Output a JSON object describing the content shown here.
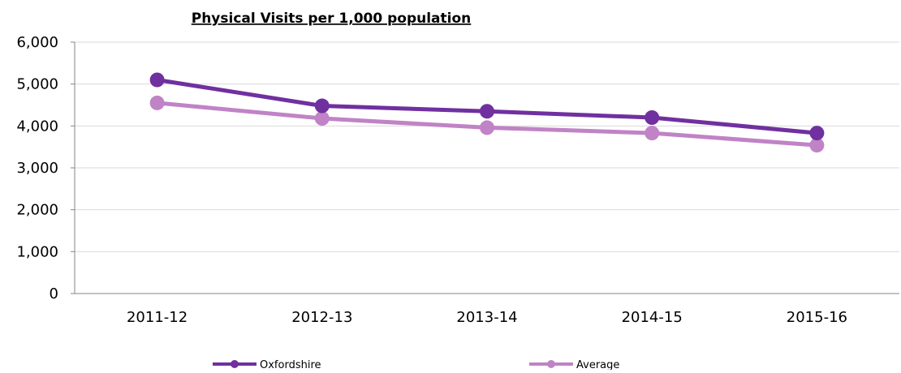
{
  "chart_data": {
    "type": "line",
    "title": "Physical Visits per 1,000 population",
    "xlabel": "",
    "ylabel": "",
    "categories": [
      "2011-12",
      "2012-13",
      "2013-14",
      "2014-15",
      "2015-16"
    ],
    "ylim": [
      0,
      6000
    ],
    "yticks": [
      0,
      1000,
      2000,
      3000,
      4000,
      5000,
      6000
    ],
    "ytick_labels": [
      "0",
      "1,000",
      "2,000",
      "3,000",
      "4,000",
      "5,000",
      "6,000"
    ],
    "grid": true,
    "legend_position": "bottom",
    "series": [
      {
        "name": "Oxfordshire",
        "color": "#7030a0",
        "values": [
          5100,
          4480,
          4350,
          4200,
          3830
        ]
      },
      {
        "name": "Average",
        "color": "#c083c6",
        "values": [
          4550,
          4180,
          3960,
          3830,
          3540
        ]
      }
    ]
  }
}
